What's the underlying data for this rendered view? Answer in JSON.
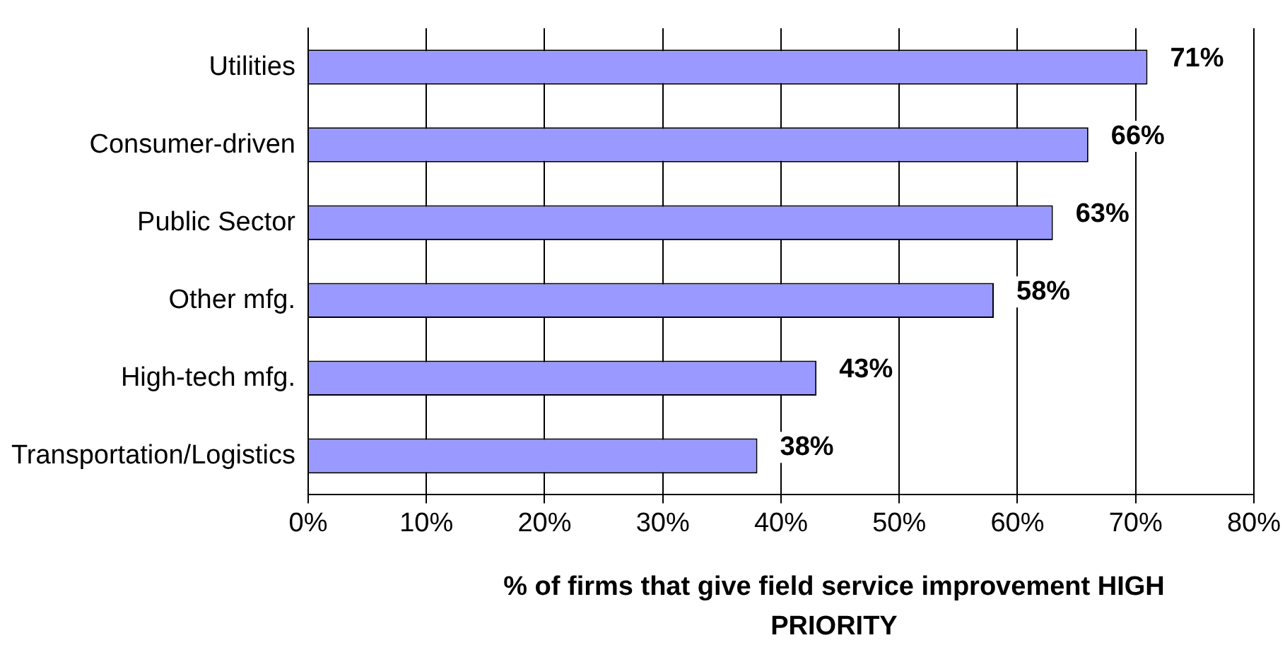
{
  "chart_data": {
    "type": "bar",
    "orientation": "horizontal",
    "categories": [
      "Utilities",
      "Consumer-driven",
      "Public Sector",
      "Other mfg.",
      "High-tech mfg.",
      "Transportation/Logistics"
    ],
    "values": [
      71,
      66,
      63,
      58,
      43,
      38
    ],
    "value_labels": [
      "71%",
      "66%",
      "63%",
      "58%",
      "43%",
      "38%"
    ],
    "color": "#9999ff",
    "xlim": [
      0,
      80
    ],
    "xticks": [
      {
        "value": 0,
        "label": "0%"
      },
      {
        "value": 10,
        "label": "10%"
      },
      {
        "value": 20,
        "label": "20%"
      },
      {
        "value": 30,
        "label": "30%"
      },
      {
        "value": 40,
        "label": "40%"
      },
      {
        "value": 50,
        "label": "50%"
      },
      {
        "value": 60,
        "label": "60%"
      },
      {
        "value": 70,
        "label": "70%"
      },
      {
        "value": 80,
        "label": "80%"
      }
    ],
    "xlabel": "% of firms that give field service improvement HIGH PRIORITY",
    "grid": "x",
    "legend": false
  }
}
